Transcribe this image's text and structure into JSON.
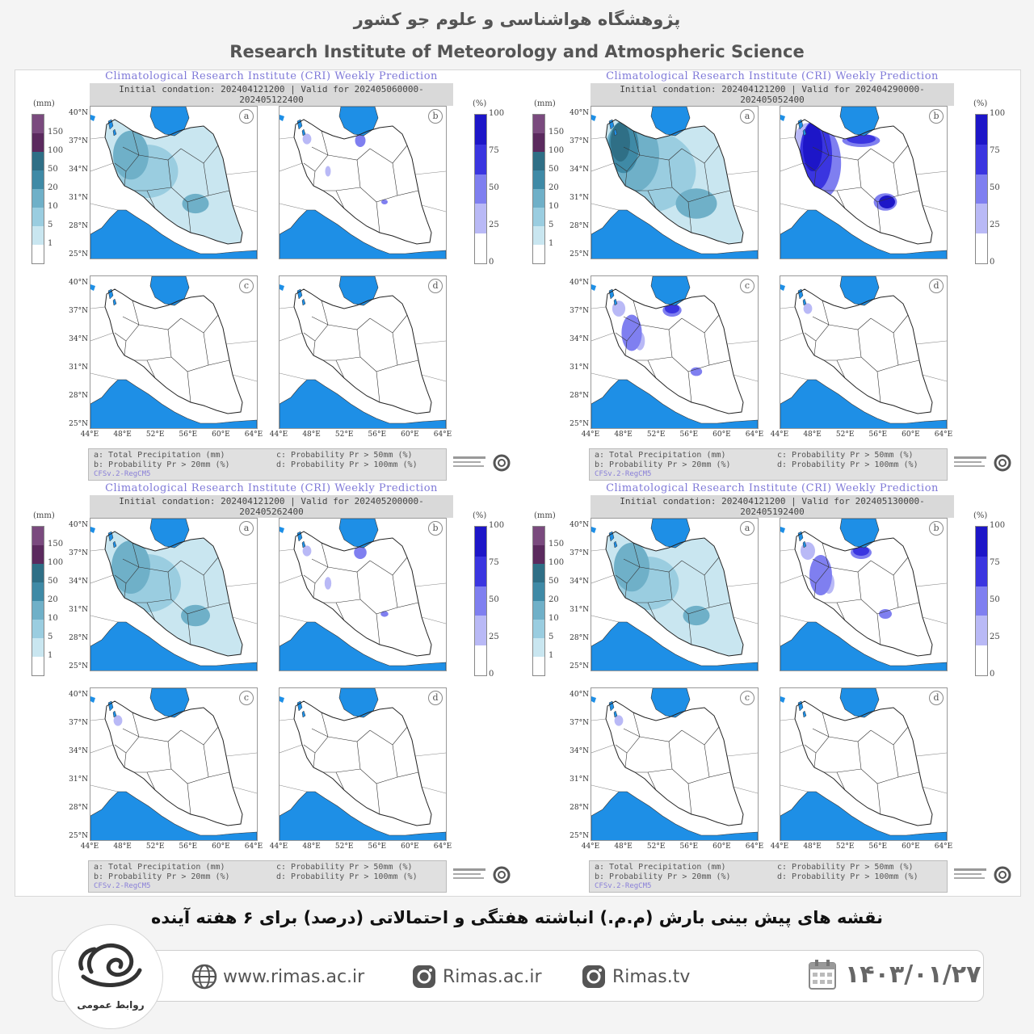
{
  "header": {
    "title_fa": "پژوهشگاه هواشناسی و علوم جو کشور",
    "title_en": "Research Institute of Meteorology and Atmospheric Science"
  },
  "map_common": {
    "title": "Climatological Research Institute (CRI) Weekly Prediction",
    "unit_mm": "(mm)",
    "unit_pct": "(%)",
    "mm_levels": [
      "150",
      "100",
      "50",
      "20",
      "10",
      "5",
      "1"
    ],
    "pct_levels": [
      "100",
      "75",
      "50",
      "25",
      "0"
    ],
    "mm_colors": [
      "#7a4a7e",
      "#5b2a5e",
      "#2f6f86",
      "#3f8aa6",
      "#6fb0c8",
      "#9acde0",
      "#c9e6f0",
      "#ffffff"
    ],
    "pct_colors": [
      "#1d16c8",
      "#3a35e0",
      "#7f7ff0",
      "#b9b9f6",
      "#ffffff"
    ],
    "lat_labels": [
      "40°N",
      "37°N",
      "34°N",
      "31°N",
      "28°N",
      "25°N"
    ],
    "lon_labels": [
      "44°E",
      "48°E",
      "52°E",
      "56°E",
      "60°E",
      "64°E"
    ],
    "panel_letters": [
      "a",
      "b",
      "c",
      "d"
    ],
    "footer_a": "a: Total Precipitation (mm)",
    "footer_b": "b: Probability Pr > 20mm (%)",
    "footer_c": "c: Probability Pr > 50mm (%)",
    "footer_d": "d: Probability Pr > 100mm (%)",
    "footer_model": "CFSv.2-RegCM5",
    "sea_color": "#1e8fe6"
  },
  "quadrants": [
    {
      "id": "top-left",
      "init": "Initial condation: 202404121200 | Valid for 202405060000-202405122400",
      "intensity": {
        "a": 0.55,
        "b": 0.25,
        "c": 0.0,
        "d": 0.0
      }
    },
    {
      "id": "top-right",
      "init": "Initial condation: 202404121200 | Valid for 202404290000-202405052400",
      "intensity": {
        "a": 0.85,
        "b": 0.9,
        "c": 0.45,
        "d": 0.05
      }
    },
    {
      "id": "bottom-left",
      "init": "Initial condation: 202404121200 | Valid for 202405200000-202405262400",
      "intensity": {
        "a": 0.6,
        "b": 0.3,
        "c": 0.03,
        "d": 0.0
      }
    },
    {
      "id": "bottom-right",
      "init": "Initial condation: 202404121200 | Valid for 202405130000-202405192400",
      "intensity": {
        "a": 0.55,
        "b": 0.5,
        "c": 0.04,
        "d": 0.0
      }
    }
  ],
  "caption": "نقشه های پیش بینی بارش (م.م.) انباشته هفتگی و احتمالاتی (درصد) برای ۶ هفته آینده",
  "footer": {
    "logo_text": "روابط عمومی",
    "website": "www.rimas.ac.ir",
    "instagram1": "Rimas.ac.ir",
    "instagram2": "Rimas.tv",
    "date": "۱۴۰۳/۰۱/۲۷"
  }
}
